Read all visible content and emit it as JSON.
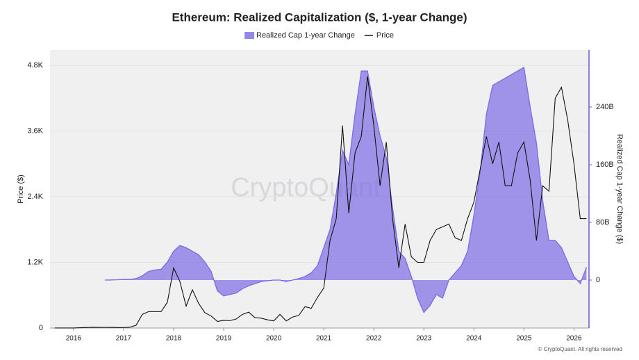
{
  "chart_data": {
    "type": "area-line",
    "title": "Ethereum: Realized Capitalization ($, 1-year Change)",
    "ylabel": "Price ($)",
    "y2label": "Realized Cap 1-year Change ($)",
    "watermark": "CryptoQuant",
    "footer": "© CryptoQuant. All rights reserved",
    "xlim": [
      2015.53,
      2026.3
    ],
    "xticks": [
      2016,
      2017,
      2018,
      2019,
      2020,
      2021,
      2022,
      2023,
      2024,
      2025,
      2026
    ],
    "ylim": [
      0,
      5080
    ],
    "yticks": [
      0,
      {
        "value": 1200,
        "label": "1.2K"
      },
      {
        "value": 2400,
        "label": "2.4K"
      },
      {
        "value": 3600,
        "label": "3.6K"
      },
      {
        "value": 4800,
        "label": "4.8K"
      }
    ],
    "y2lim": [
      -66.5,
      319
    ],
    "y2ticks": [
      0,
      {
        "value": 80,
        "label": "80B"
      },
      {
        "value": 160,
        "label": "160B"
      },
      {
        "value": 240,
        "label": "240B"
      }
    ],
    "grid": true,
    "x": [
      2015.625,
      2015.75,
      2015.875,
      2016,
      2016.125,
      2016.25,
      2016.375,
      2016.5,
      2016.625,
      2016.75,
      2016.875,
      2017,
      2017.125,
      2017.25,
      2017.375,
      2017.5,
      2017.625,
      2017.75,
      2017.875,
      2018,
      2018.125,
      2018.25,
      2018.375,
      2018.5,
      2018.625,
      2018.75,
      2018.875,
      2019,
      2019.125,
      2019.25,
      2019.375,
      2019.5,
      2019.625,
      2019.75,
      2019.875,
      2020,
      2020.125,
      2020.25,
      2020.375,
      2020.5,
      2020.625,
      2020.75,
      2020.875,
      2021,
      2021.125,
      2021.25,
      2021.375,
      2021.5,
      2021.625,
      2021.75,
      2021.875,
      2022,
      2022.125,
      2022.25,
      2022.375,
      2022.5,
      2022.625,
      2022.75,
      2022.875,
      2023,
      2023.125,
      2023.25,
      2023.375,
      2023.5,
      2023.625,
      2023.75,
      2023.875,
      2024,
      2024.125,
      2024.25,
      2024.375,
      2024.5,
      2024.625,
      2024.75,
      2024.875,
      2025,
      2025.125,
      2025.25,
      2025.375,
      2025.5,
      2025.625,
      2025.75,
      2025.875,
      2026,
      2026.125,
      2026.25
    ],
    "series": [
      {
        "name": "Realized Cap 1-year Change",
        "color": "#7b6ae6",
        "axis": "y2",
        "kind": "area",
        "values": [
          null,
          null,
          null,
          null,
          null,
          null,
          null,
          null,
          0,
          0.2,
          0.5,
          1,
          1,
          2,
          6,
          12,
          14,
          15,
          25,
          40,
          48,
          45,
          40,
          35,
          25,
          12,
          -15,
          -22,
          -20,
          -18,
          -12,
          -8,
          -5,
          -2,
          -1,
          0,
          0,
          -2,
          0,
          2,
          5,
          10,
          20,
          45,
          70,
          120,
          180,
          160,
          230,
          290,
          290,
          240,
          200,
          170,
          100,
          40,
          30,
          5,
          -25,
          -45,
          -35,
          -20,
          -25,
          0,
          10,
          20,
          40,
          90,
          150,
          230,
          270,
          275,
          280,
          285,
          290,
          295,
          240,
          190,
          110,
          55,
          55,
          45,
          25,
          5,
          -5,
          18
        ]
      },
      {
        "name": "Price",
        "color": "#111111",
        "kind": "line",
        "values": [
          1,
          0.6,
          0.9,
          1,
          6,
          9,
          13,
          12,
          11,
          12,
          9,
          8,
          15,
          50,
          250,
          300,
          300,
          300,
          470,
          1100,
          850,
          400,
          700,
          450,
          280,
          220,
          120,
          140,
          135,
          165,
          250,
          290,
          190,
          180,
          150,
          130,
          250,
          130,
          200,
          230,
          390,
          360,
          560,
          730,
          1600,
          2000,
          3700,
          2100,
          3200,
          3500,
          4600,
          3700,
          2600,
          3400,
          2000,
          1100,
          1900,
          1300,
          1200,
          1200,
          1600,
          1800,
          1850,
          1900,
          1650,
          1600,
          2000,
          2300,
          2900,
          3500,
          3000,
          3400,
          2600,
          2600,
          3200,
          3400,
          2700,
          1600,
          2600,
          2500,
          4200,
          4400,
          3800,
          3000,
          2000,
          2000
        ]
      }
    ]
  }
}
